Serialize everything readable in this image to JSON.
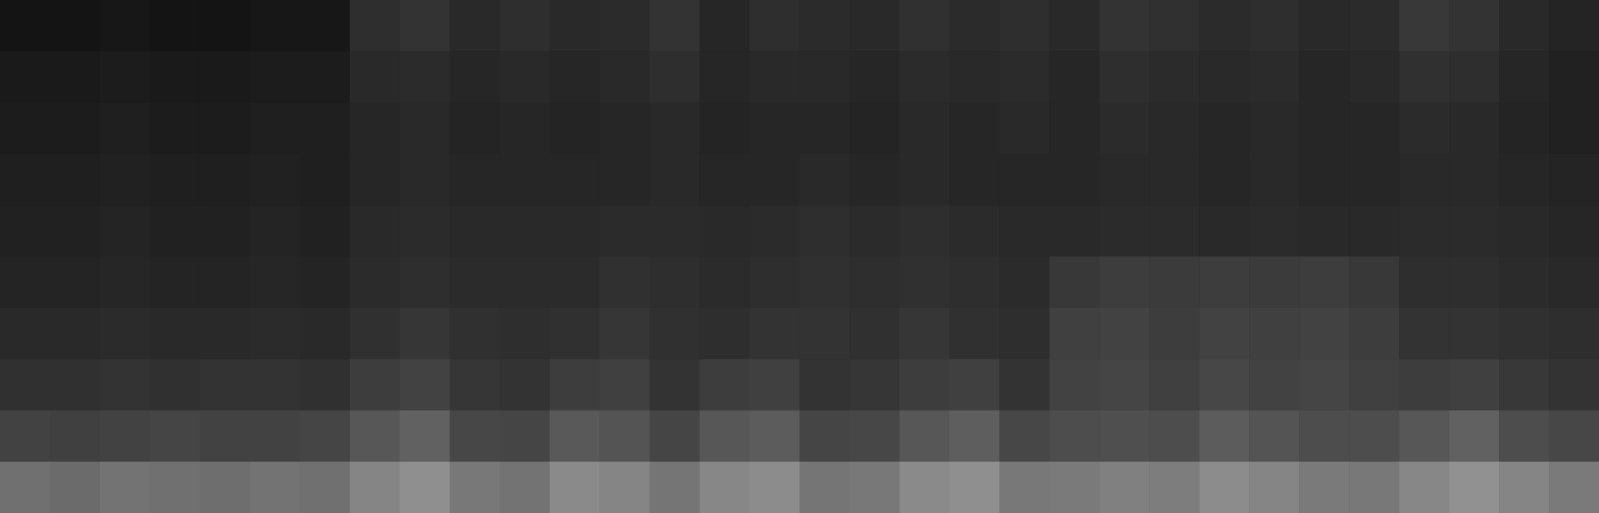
{
  "chart_data": {
    "type": "heatmap",
    "tick_labels": false,
    "color": "#ffffff",
    "zlim": [
      0,
      100
    ],
    "cells": [
      [
        8,
        8,
        9,
        8,
        8,
        9,
        9,
        18,
        20,
        16,
        18,
        16,
        17,
        20,
        15,
        18,
        17,
        16,
        19,
        17,
        18,
        16,
        20,
        19,
        17,
        18,
        16,
        17,
        22,
        20,
        16,
        14
      ],
      [
        10,
        10,
        11,
        10,
        10,
        11,
        11,
        16,
        17,
        15,
        16,
        15,
        16,
        18,
        15,
        16,
        16,
        15,
        17,
        16,
        17,
        15,
        18,
        17,
        16,
        17,
        15,
        16,
        19,
        18,
        15,
        13
      ],
      [
        11,
        11,
        12,
        11,
        11,
        12,
        12,
        15,
        16,
        14,
        15,
        14,
        15,
        16,
        14,
        15,
        15,
        14,
        16,
        15,
        16,
        15,
        17,
        16,
        15,
        16,
        15,
        15,
        17,
        16,
        14,
        13
      ],
      [
        12,
        12,
        13,
        12,
        12,
        13,
        12,
        15,
        16,
        15,
        15,
        15,
        15,
        16,
        15,
        15,
        16,
        15,
        16,
        15,
        15,
        15,
        16,
        16,
        15,
        16,
        15,
        15,
        16,
        16,
        15,
        14
      ],
      [
        13,
        13,
        14,
        13,
        13,
        14,
        13,
        16,
        17,
        16,
        16,
        16,
        17,
        17,
        16,
        17,
        18,
        17,
        18,
        17,
        16,
        16,
        17,
        17,
        16,
        17,
        16,
        16,
        17,
        17,
        16,
        15
      ],
      [
        14,
        14,
        15,
        14,
        14,
        15,
        14,
        17,
        18,
        17,
        17,
        17,
        19,
        18,
        17,
        18,
        19,
        18,
        19,
        18,
        17,
        22,
        24,
        23,
        24,
        23,
        24,
        22,
        18,
        18,
        17,
        16
      ],
      [
        16,
        16,
        17,
        16,
        16,
        17,
        16,
        19,
        21,
        19,
        18,
        19,
        21,
        19,
        18,
        20,
        20,
        19,
        21,
        19,
        18,
        25,
        26,
        24,
        26,
        25,
        26,
        24,
        20,
        20,
        19,
        18
      ],
      [
        19,
        19,
        20,
        19,
        20,
        20,
        19,
        24,
        26,
        21,
        20,
        24,
        25,
        20,
        24,
        25,
        20,
        21,
        24,
        25,
        20,
        26,
        27,
        25,
        28,
        26,
        27,
        25,
        24,
        25,
        22,
        20
      ],
      [
        26,
        25,
        26,
        27,
        26,
        26,
        27,
        34,
        38,
        28,
        27,
        35,
        33,
        27,
        34,
        36,
        27,
        28,
        34,
        37,
        28,
        30,
        31,
        30,
        36,
        33,
        30,
        30,
        34,
        38,
        30,
        28
      ],
      [
        44,
        42,
        45,
        44,
        43,
        45,
        44,
        52,
        56,
        47,
        45,
        54,
        52,
        46,
        53,
        55,
        46,
        47,
        54,
        56,
        47,
        48,
        50,
        49,
        55,
        52,
        48,
        47,
        53,
        57,
        52,
        48
      ]
    ]
  }
}
